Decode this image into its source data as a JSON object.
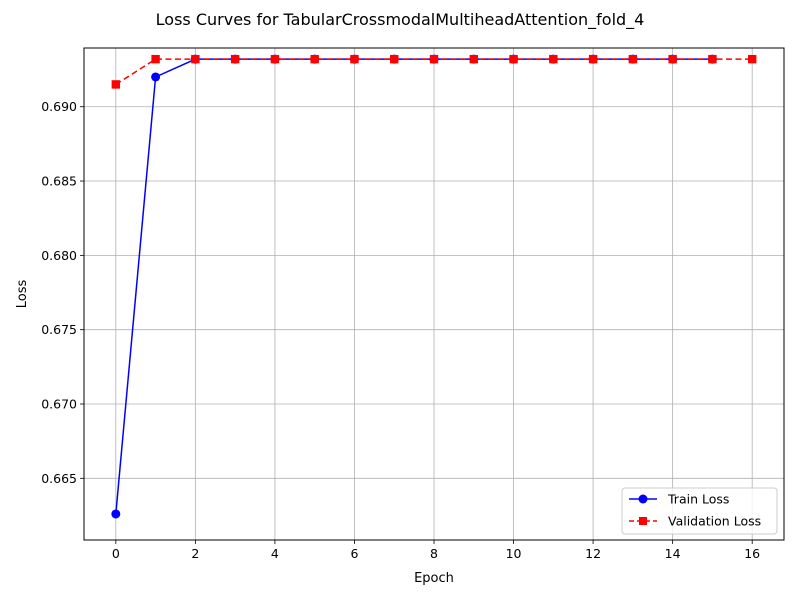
{
  "chart_data": {
    "type": "line",
    "title": "Loss Curves for TabularCrossmodalMultiheadAttention_fold_4",
    "xlabel": "Epoch",
    "ylabel": "Loss",
    "xlim": [
      -0.8,
      16.8
    ],
    "ylim": [
      0.66085,
      0.69395
    ],
    "x_ticks": [
      0,
      2,
      4,
      6,
      8,
      10,
      12,
      14,
      16
    ],
    "y_ticks": [
      0.665,
      0.67,
      0.675,
      0.68,
      0.685,
      0.69
    ],
    "y_tick_labels": [
      "0.665",
      "0.670",
      "0.675",
      "0.680",
      "0.685",
      "0.690"
    ],
    "grid": true,
    "legend_position": "lower-right",
    "series": [
      {
        "name": "Train Loss",
        "color": "#0000ff",
        "line_style": "solid",
        "marker": "circle",
        "x": [
          0,
          1,
          2,
          3,
          4,
          5,
          6,
          7,
          8,
          9,
          10,
          11,
          12,
          13,
          14,
          15
        ],
        "values": [
          0.6626,
          0.692,
          0.6932,
          0.6932,
          0.6932,
          0.6932,
          0.6932,
          0.6932,
          0.6932,
          0.6932,
          0.6932,
          0.6932,
          0.6932,
          0.6932,
          0.6932,
          0.6932
        ]
      },
      {
        "name": "Validation Loss",
        "color": "#ff0000",
        "line_style": "dashed",
        "marker": "square",
        "x": [
          0,
          1,
          2,
          3,
          4,
          5,
          6,
          7,
          8,
          9,
          10,
          11,
          12,
          13,
          14,
          15,
          16
        ],
        "values": [
          0.6915,
          0.6932,
          0.6932,
          0.6932,
          0.6932,
          0.6932,
          0.6932,
          0.6932,
          0.6932,
          0.6932,
          0.6932,
          0.6932,
          0.6932,
          0.6932,
          0.6932,
          0.6932,
          0.6932
        ]
      }
    ]
  }
}
